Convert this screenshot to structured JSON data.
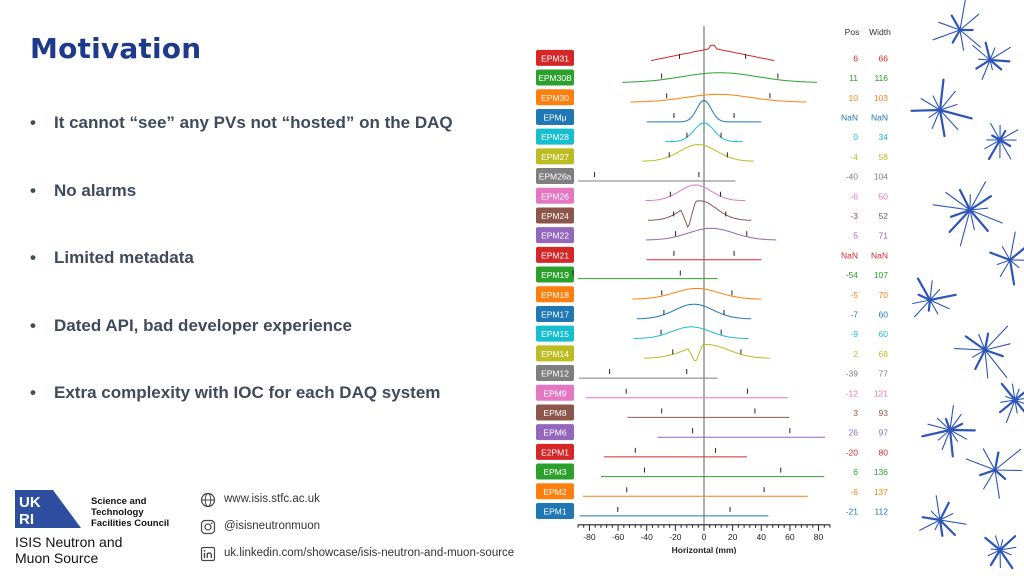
{
  "slide": {
    "title": "Motivation",
    "bullets": [
      "It cannot “see” any PVs not “hosted” on the DAQ",
      "No alarms",
      "Limited metadata",
      "Dated API, bad developer experience",
      "Extra complexity with IOC for each DAQ system"
    ],
    "bullet_glyph": "•"
  },
  "footer": {
    "ukri_letters": [
      "UK",
      "RI"
    ],
    "council_lines": [
      "Science and",
      "Technology",
      "Facilities Council"
    ],
    "org_lines": [
      "ISIS Neutron and",
      "Muon Source"
    ],
    "contacts": [
      {
        "icon": "globe-icon",
        "text": "www.isis.stfc.ac.uk"
      },
      {
        "icon": "instagram-icon",
        "text": "@isisneutronmuon"
      },
      {
        "icon": "linkedin-icon",
        "text": "uk.linkedin.com/showcase/isis-neutron-and-muon-source"
      }
    ]
  },
  "colors": {
    "title": "#1e3a8a",
    "bullet_text": "#3f4a5c",
    "ukri_blue": "#2e4f9f",
    "decor_blue": "#2d55b8"
  },
  "chart_data": {
    "type": "line",
    "title": "",
    "xlabel": "Horizontal (mm)",
    "xlim": [
      -88,
      88
    ],
    "xticks": [
      -80,
      -60,
      -40,
      -20,
      0,
      20,
      40,
      60,
      80
    ],
    "header_pos": "Pos",
    "header_width": "Width",
    "series": [
      {
        "name": "EPM31",
        "pos": "6",
        "width": "66",
        "color": "#d62728",
        "shape": "tri",
        "amp": 0.75
      },
      {
        "name": "EPM30B",
        "pos": "11",
        "width": "116",
        "color": "#2ca02c",
        "shape": "gauss",
        "amp": 0.5
      },
      {
        "name": "EPM30",
        "pos": "10",
        "width": "103",
        "color": "#ff7f0e",
        "shape": "gauss",
        "amp": 0.4
      },
      {
        "name": "EPMμ",
        "pos": "NaN",
        "width": "NaN",
        "color": "#1f77b4",
        "shape": "peak",
        "amp": 1.1
      },
      {
        "name": "EPM28",
        "pos": "0",
        "width": "34",
        "color": "#17becf",
        "shape": "narrow",
        "amp": 0.95
      },
      {
        "name": "EPM27",
        "pos": "-4",
        "width": "58",
        "color": "#bcbd22",
        "shape": "gauss",
        "amp": 0.85
      },
      {
        "name": "EPM26a",
        "pos": "-40",
        "width": "104",
        "color": "#7f7f7f",
        "shape": "flat",
        "amp": 0.0
      },
      {
        "name": "EPM26",
        "pos": "-6",
        "width": "50",
        "color": "#e377c2",
        "shape": "gauss",
        "amp": 0.8
      },
      {
        "name": "EPM24",
        "pos": "-3",
        "width": "52",
        "color": "#8c564b",
        "shape": "dip",
        "amp": 1.0
      },
      {
        "name": "EPM22",
        "pos": "5",
        "width": "71",
        "color": "#9467bd",
        "shape": "gauss",
        "amp": 0.6
      },
      {
        "name": "EPM21",
        "pos": "NaN",
        "width": "NaN",
        "color": "#d62728",
        "shape": "flat",
        "amp": 0.0
      },
      {
        "name": "EPM19",
        "pos": "-54",
        "width": "107",
        "color": "#2ca02c",
        "shape": "flat",
        "amp": 0.05
      },
      {
        "name": "EPM18",
        "pos": "-5",
        "width": "70",
        "color": "#ff7f0e",
        "shape": "gauss",
        "amp": 0.55
      },
      {
        "name": "EPM17",
        "pos": "-7",
        "width": "60",
        "color": "#1f77b4",
        "shape": "gauss",
        "amp": 0.75
      },
      {
        "name": "EPM15",
        "pos": "-9",
        "width": "60",
        "color": "#17becf",
        "shape": "gauss",
        "amp": 0.6
      },
      {
        "name": "EPM14",
        "pos": "2",
        "width": "68",
        "color": "#bcbd22",
        "shape": "dip",
        "amp": 0.7
      },
      {
        "name": "EPM12",
        "pos": "-39",
        "width": "77",
        "color": "#7f7f7f",
        "shape": "flat",
        "amp": 0.0
      },
      {
        "name": "EPM9",
        "pos": "-12",
        "width": "121",
        "color": "#e377c2",
        "shape": "flat",
        "amp": 0.0
      },
      {
        "name": "EPM8",
        "pos": "3",
        "width": "93",
        "color": "#8c564b",
        "shape": "flat",
        "amp": 0.0
      },
      {
        "name": "EPM6",
        "pos": "26",
        "width": "97",
        "color": "#9467bd",
        "shape": "flat",
        "amp": 0.0
      },
      {
        "name": "E2PM1",
        "pos": "-20",
        "width": "80",
        "color": "#d62728",
        "shape": "flat",
        "amp": 0.0
      },
      {
        "name": "EPM3",
        "pos": "6",
        "width": "136",
        "color": "#2ca02c",
        "shape": "flat",
        "amp": 0.0
      },
      {
        "name": "EPM2",
        "pos": "-6",
        "width": "137",
        "color": "#ff7f0e",
        "shape": "flat",
        "amp": 0.0
      },
      {
        "name": "EPM1",
        "pos": "-21",
        "width": "112",
        "color": "#1f77b4",
        "shape": "flat",
        "amp": 0.0
      }
    ]
  }
}
